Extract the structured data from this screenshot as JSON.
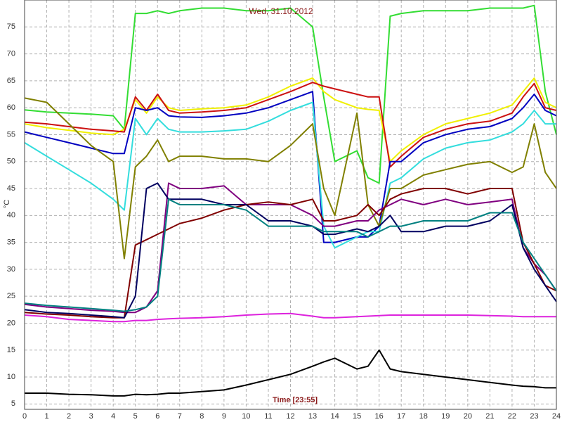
{
  "chart_data": {
    "type": "line",
    "title": "Wed, 31.10.2012",
    "x_label": "Time [23:55]",
    "y_label": "°C",
    "xlim": [
      0,
      24
    ],
    "xticks": [
      0,
      1,
      2,
      3,
      4,
      5,
      6,
      7,
      8,
      9,
      10,
      11,
      12,
      13,
      14,
      15,
      16,
      17,
      18,
      19,
      20,
      21,
      22,
      23,
      24
    ],
    "ylim": [
      4,
      80
    ],
    "yticks": [
      5,
      10,
      15,
      20,
      25,
      30,
      35,
      40,
      45,
      50,
      55,
      60,
      65,
      70,
      75
    ],
    "grid": true,
    "x": [
      0,
      1,
      2,
      3,
      4,
      4.5,
      5,
      5.5,
      6,
      6.5,
      7,
      8,
      9,
      10,
      11,
      12,
      13,
      13.5,
      14,
      15,
      15.5,
      16,
      16.5,
      17,
      18,
      19,
      20,
      21,
      22,
      22.5,
      23,
      23.5,
      24
    ],
    "series": [
      {
        "color": "#33dd33",
        "values": [
          59.6,
          59.2,
          59,
          58.8,
          58.5,
          56,
          77.5,
          77.5,
          78,
          77.5,
          78,
          78.5,
          78.5,
          78,
          78,
          78.5,
          75,
          62,
          50,
          52,
          47,
          46,
          77,
          77.5,
          78,
          78,
          78,
          78.5,
          78.5,
          78.5,
          79,
          63,
          55
        ]
      },
      {
        "color": "#f0f000",
        "values": [
          57,
          56.3,
          55.8,
          55.3,
          55,
          56,
          61.5,
          59,
          62,
          60,
          59.5,
          59.8,
          60,
          60.5,
          62,
          64,
          65.5,
          63,
          61.5,
          60,
          59.7,
          59.5,
          50,
          52,
          55,
          57,
          58,
          59,
          60.5,
          63,
          65.5,
          61,
          60
        ]
      },
      {
        "color": "#cc1111",
        "values": [
          57.3,
          57,
          56.5,
          56,
          55.7,
          55.5,
          62,
          59.5,
          62.5,
          59.5,
          59,
          59.2,
          59.5,
          60,
          61.5,
          63,
          64.7,
          64,
          63.5,
          62.5,
          62,
          62,
          49,
          51,
          54.5,
          56,
          57,
          57.5,
          59,
          62,
          64.5,
          60,
          59.5
        ]
      },
      {
        "color": "#0000c0",
        "values": [
          55.5,
          54.5,
          53.5,
          52.5,
          51.5,
          51.5,
          60,
          59.5,
          60,
          58.5,
          58.3,
          58.2,
          58.5,
          59,
          60,
          61.5,
          63,
          35,
          35,
          36,
          36,
          38,
          50,
          50,
          53.5,
          55,
          56,
          56.5,
          58,
          60,
          62.5,
          59.5,
          58.5
        ]
      },
      {
        "color": "#33dddd",
        "values": [
          53.5,
          51,
          48.5,
          46,
          43,
          41,
          58,
          55,
          58,
          56,
          55.5,
          55.5,
          55.7,
          56,
          57.5,
          59.5,
          61,
          38,
          34,
          36,
          37,
          37,
          46,
          47,
          50.5,
          52.5,
          53.5,
          54,
          55.5,
          57,
          59.5,
          57,
          57
        ]
      },
      {
        "color": "#808000",
        "values": [
          61.8,
          61,
          57,
          53,
          50,
          32,
          49,
          51,
          54,
          50,
          51,
          51,
          50.5,
          50.5,
          50,
          53,
          57,
          45,
          40,
          59,
          42,
          38,
          45,
          45,
          47.5,
          48.5,
          49.5,
          50,
          48,
          49,
          57,
          48,
          45
        ]
      },
      {
        "color": "#800080",
        "values": [
          23.5,
          23,
          22.7,
          22.4,
          22.2,
          22,
          22,
          23,
          26,
          46,
          45,
          45,
          45.5,
          42,
          42,
          42,
          40,
          38,
          38,
          39,
          39,
          41,
          42,
          43,
          42,
          43,
          42,
          42.5,
          43,
          34,
          31,
          29,
          26
        ]
      },
      {
        "color": "#800000",
        "values": [
          22,
          21.7,
          21.5,
          21.2,
          21,
          21,
          34.5,
          35.5,
          36.5,
          37.5,
          38.5,
          39.5,
          41,
          42,
          42.5,
          42,
          43,
          39,
          39,
          40,
          42,
          40,
          43,
          44,
          45,
          45,
          44,
          45,
          45,
          35,
          31,
          27,
          26
        ]
      },
      {
        "color": "#000060",
        "values": [
          22.5,
          22,
          21.8,
          21.5,
          21.2,
          21,
          25,
          45,
          46,
          43,
          43,
          43,
          42,
          42,
          39,
          39,
          38,
          36.5,
          36.5,
          37.5,
          37,
          38,
          40,
          37,
          37,
          38,
          38,
          39,
          42,
          34,
          30,
          27,
          24
        ]
      },
      {
        "color": "#008080",
        "values": [
          23.7,
          23.3,
          23,
          22.7,
          22.4,
          22.2,
          22.5,
          23,
          25,
          43,
          42,
          42,
          42,
          41,
          38,
          38,
          38,
          37,
          37,
          37,
          36,
          37,
          38,
          38,
          39,
          39,
          39,
          40.5,
          40.5,
          35,
          32,
          29,
          26
        ]
      },
      {
        "color": "#dd22dd",
        "values": [
          21.5,
          21.2,
          20.7,
          20.5,
          20.3,
          20.3,
          20.5,
          20.5,
          20.7,
          20.8,
          20.9,
          21,
          21.2,
          21.5,
          21.7,
          21.8,
          21.3,
          21,
          21,
          21.2,
          21.3,
          21.4,
          21.5,
          21.5,
          21.5,
          21.5,
          21.5,
          21.4,
          21.3,
          21.2,
          21.2,
          21.2,
          21.2
        ]
      },
      {
        "color": "#000000",
        "values": [
          7,
          7,
          6.8,
          6.7,
          6.5,
          6.5,
          6.8,
          6.7,
          6.8,
          7,
          7,
          7.3,
          7.6,
          8.5,
          9.5,
          10.5,
          12,
          12.8,
          13.5,
          11.5,
          12,
          15,
          11.5,
          11,
          10.5,
          10,
          9.5,
          9,
          8.5,
          8.3,
          8.2,
          8,
          8
        ]
      }
    ]
  }
}
